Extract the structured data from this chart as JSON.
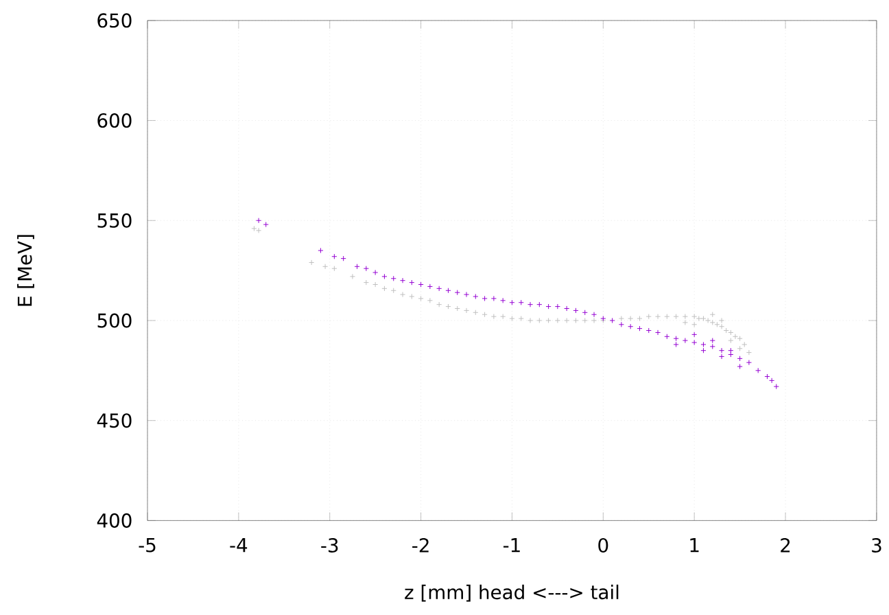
{
  "chart_data": {
    "type": "scatter",
    "xlabel": "z [mm]   head <---> tail",
    "ylabel": "E [MeV]",
    "xlim": [
      -5,
      3
    ],
    "ylim": [
      400,
      650
    ],
    "xticks": [
      -5,
      -4,
      -3,
      -2,
      -1,
      0,
      1,
      2,
      3
    ],
    "yticks": [
      400,
      450,
      500,
      550,
      600,
      650
    ],
    "grid": true,
    "marker": "cross",
    "series": [
      {
        "color": "#c0c0c0",
        "x": [
          -3.83,
          -3.78,
          -3.2,
          -3.05,
          -2.95,
          -2.75,
          -2.6,
          -2.5,
          -2.4,
          -2.3,
          -2.2,
          -2.1,
          -2.0,
          -1.9,
          -1.8,
          -1.7,
          -1.6,
          -1.5,
          -1.4,
          -1.3,
          -1.2,
          -1.1,
          -1.0,
          -0.9,
          -0.8,
          -0.7,
          -0.6,
          -0.5,
          -0.4,
          -0.3,
          -0.2,
          -0.1,
          0.0,
          0.1,
          0.2,
          0.3,
          0.4,
          0.5,
          0.6,
          0.7,
          0.8,
          0.9,
          1.0,
          1.05,
          1.1,
          1.15,
          1.2,
          1.25,
          1.3,
          1.35,
          1.4,
          1.45,
          1.5,
          1.55,
          1.6,
          0.9,
          1.0,
          1.2,
          1.3,
          1.4,
          1.5
        ],
        "values": [
          546,
          545,
          529,
          527,
          526,
          522,
          519,
          518,
          516,
          515,
          513,
          512,
          511,
          510,
          508,
          507,
          506,
          505,
          504,
          503,
          502,
          502,
          501,
          501,
          500,
          500,
          500,
          500,
          500,
          500,
          500,
          500,
          500,
          null,
          501,
          501,
          501,
          502,
          502,
          502,
          502,
          502,
          502,
          501,
          501,
          500,
          499,
          498,
          497,
          495,
          494,
          492,
          491,
          488,
          484,
          499,
          498,
          503,
          500,
          490,
          486
        ]
      },
      {
        "color": "#9400d3",
        "x": [
          -3.78,
          -3.7,
          -3.1,
          -2.95,
          -2.85,
          -2.7,
          -2.6,
          -2.5,
          -2.4,
          -2.3,
          -2.2,
          -2.1,
          -2.0,
          -1.9,
          -1.8,
          -1.7,
          -1.6,
          -1.5,
          -1.4,
          -1.3,
          -1.2,
          -1.1,
          -1.0,
          -0.9,
          -0.8,
          -0.7,
          -0.6,
          -0.5,
          -0.4,
          -0.3,
          -0.2,
          -0.1,
          0.0,
          0.1,
          0.2,
          0.3,
          0.4,
          0.5,
          0.6,
          0.7,
          0.8,
          0.9,
          1.0,
          1.1,
          1.2,
          1.3,
          1.4,
          1.5,
          1.6,
          1.7,
          1.8,
          1.85,
          1.9,
          0.8,
          1.0,
          1.1,
          1.2,
          1.3,
          1.4,
          1.5
        ],
        "values": [
          550,
          548,
          535,
          532,
          531,
          527,
          526,
          524,
          522,
          521,
          520,
          519,
          518,
          517,
          516,
          515,
          514,
          513,
          512,
          511,
          511,
          510,
          509,
          509,
          508,
          508,
          507,
          507,
          506,
          505,
          504,
          503,
          501,
          500,
          498,
          497,
          496,
          495,
          494,
          492,
          491,
          490,
          489,
          488,
          487,
          485,
          483,
          481,
          479,
          475,
          472,
          470,
          467,
          488,
          493,
          485,
          490,
          482,
          485,
          477
        ]
      }
    ]
  }
}
